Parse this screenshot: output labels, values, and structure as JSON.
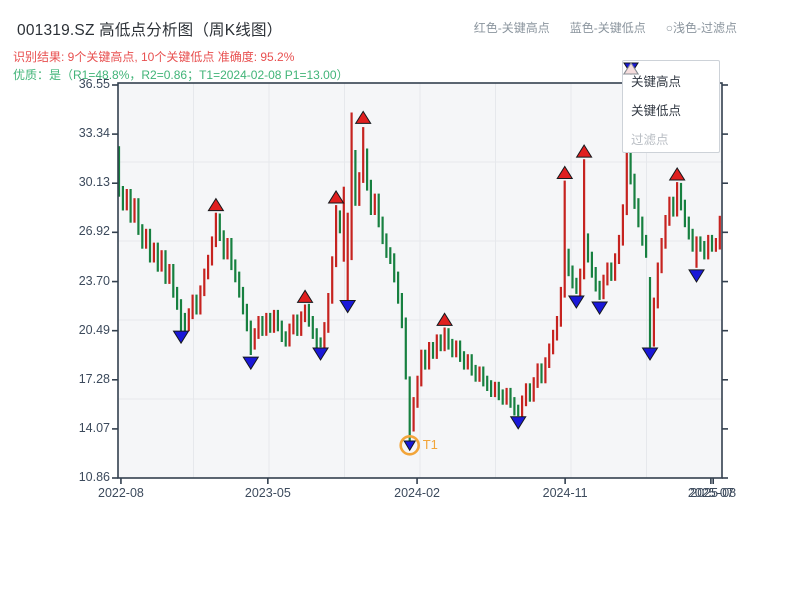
{
  "header": {
    "title": "001319.SZ 高低点分析图（周K线图）",
    "subtitle_result": "识别结果: 9个关键高点, 10个关键低点  准确度: 95.2%",
    "subtitle_quality": "优质：是（R1=48.8%，R2=0.86；T1=2024-02-08 P1=13.00）",
    "legend_hint": [
      {
        "label": "红色-关键高点"
      },
      {
        "label": "蓝色-关键低点"
      },
      {
        "label": "○浅色-过滤点"
      }
    ]
  },
  "legend": {
    "items": [
      {
        "label": "关键高点",
        "symbol": "triangle-up",
        "fill": "#e01f1f",
        "muted": false
      },
      {
        "label": "关键低点",
        "symbol": "triangle-down",
        "fill": "#1a18d8",
        "muted": false
      },
      {
        "label": "过滤点",
        "symbol": "triangle-up",
        "fill": "#f6dddd",
        "muted": true
      }
    ]
  },
  "colors": {
    "up_candle": "#c62320",
    "down_candle": "#178040",
    "key_high_marker": "#e01f1f",
    "key_low_marker": "#1a18d8",
    "marker_edge": "#15181c",
    "t1_ring": "#f2a53a",
    "plot_bg": "#f5f6f8",
    "grid": "#e6e8ec",
    "spine": "#33404f",
    "tick_text": "#3c4a5c"
  },
  "chart_data": {
    "type": "candlestick",
    "symbol": "001319.SZ",
    "frequency": "weekly",
    "title": "001319.SZ 高低点分析图（周K线图）",
    "y_axis": {
      "min": 10.86,
      "max": 36.55,
      "ticks": [
        36.55,
        33.34,
        30.13,
        26.92,
        23.7,
        20.49,
        17.28,
        14.07,
        10.86
      ]
    },
    "x_axis": {
      "ticks": [
        {
          "label": "2022-08",
          "week": 0.5
        },
        {
          "label": "2023-05",
          "week": 38.4
        },
        {
          "label": "2024-02",
          "week": 76.9
        },
        {
          "label": "2024-11",
          "week": 115.1
        },
        {
          "label": "2025-07",
          "week": 152.7
        },
        {
          "label": "2025-08",
          "week": 153.3
        }
      ]
    },
    "first_open": 32.2,
    "closes": [
      29.6,
      28.7,
      29.4,
      27.9,
      28.8,
      27.1,
      26.2,
      26.8,
      25.3,
      25.9,
      24.7,
      25.4,
      23.9,
      24.5,
      23.0,
      22.2,
      21.3,
      20.8,
      21.6,
      22.5,
      21.9,
      23.1,
      24.2,
      25.1,
      26.3,
      27.8,
      26.7,
      25.5,
      26.2,
      24.8,
      24.0,
      23.0,
      21.9,
      20.8,
      19.6,
      20.3,
      21.1,
      20.5,
      21.3,
      20.7,
      21.5,
      20.8,
      20.1,
      19.8,
      20.6,
      21.2,
      20.5,
      21.4,
      21.9,
      21.1,
      20.3,
      19.7,
      19.4,
      20.7,
      22.6,
      25.0,
      28.0,
      27.2,
      27.5,
      28.0,
      34.0,
      29.0,
      30.5,
      33.0,
      30.0,
      28.4,
      29.1,
      27.6,
      26.5,
      25.6,
      25.2,
      24.0,
      22.6,
      21.0,
      18.0,
      14.2,
      15.8,
      17.2,
      18.9,
      18.3,
      19.4,
      19.0,
      19.9,
      19.5,
      20.3,
      19.6,
      19.1,
      19.5,
      18.8,
      18.3,
      18.6,
      17.9,
      17.5,
      17.8,
      17.2,
      16.9,
      16.5,
      16.8,
      16.3,
      16.0,
      16.4,
      15.8,
      15.3,
      15.1,
      15.9,
      16.7,
      16.2,
      17.1,
      18.0,
      17.4,
      18.4,
      19.3,
      20.2,
      21.1,
      23.0,
      25.5,
      24.4,
      23.6,
      23.0,
      24.2,
      26.5,
      25.3,
      24.3,
      23.4,
      22.9,
      23.8,
      24.6,
      24.1,
      25.2,
      26.4,
      28.4,
      32.0,
      30.4,
      28.8,
      27.6,
      26.4,
      25.6,
      19.8,
      22.3,
      24.6,
      26.2,
      27.7,
      28.9,
      28.3,
      29.8,
      28.7,
      27.6,
      26.8,
      26.0,
      26.3,
      26.0,
      25.5,
      26.4,
      26.0,
      26.2,
      26.9
    ],
    "wick_overrides": {
      "16": [
        null,
        20.3
      ],
      "25": [
        28.2,
        null
      ],
      "34": [
        null,
        18.9
      ],
      "48": [
        22.2,
        null
      ],
      "52": [
        null,
        19.4
      ],
      "56": [
        28.7,
        null
      ],
      "58": [
        29.9,
        25.0
      ],
      "59": [
        28.2,
        22.4
      ],
      "60": [
        34.75,
        25.1
      ],
      "61": [
        32.3,
        null
      ],
      "63": [
        33.8,
        null
      ],
      "64": [
        32.4,
        null
      ],
      "74": [
        null,
        17.3
      ],
      "75": [
        17.5,
        13.0
      ],
      "76": [
        null,
        13.9
      ],
      "84": [
        20.7,
        null
      ],
      "103": [
        null,
        14.9
      ],
      "115": [
        30.3,
        null
      ],
      "118": [
        null,
        22.9
      ],
      "120": [
        31.7,
        null
      ],
      "124": [
        null,
        22.5
      ],
      "132": [
        33.6,
        null
      ],
      "137": [
        24.0,
        19.4
      ],
      "144": [
        30.2,
        null
      ],
      "149": [
        null,
        24.6
      ],
      "155": [
        28.0,
        25.8
      ]
    },
    "key_highs": [
      {
        "week": 25,
        "price": 28.7
      },
      {
        "week": 48,
        "price": 22.7
      },
      {
        "week": 56,
        "price": 29.2
      },
      {
        "week": 63,
        "price": 34.4
      },
      {
        "week": 84,
        "price": 21.2
      },
      {
        "week": 115,
        "price": 30.8
      },
      {
        "week": 120,
        "price": 32.2
      },
      {
        "week": 132,
        "price": 33.8
      },
      {
        "week": 144,
        "price": 30.7
      }
    ],
    "key_lows": [
      {
        "week": 16,
        "price": 20.1
      },
      {
        "week": 34,
        "price": 18.4
      },
      {
        "week": 52,
        "price": 19.0
      },
      {
        "week": 59,
        "price": 22.1
      },
      {
        "week": 75,
        "price": 13.0,
        "t1": true
      },
      {
        "week": 103,
        "price": 14.5
      },
      {
        "week": 118,
        "price": 22.4
      },
      {
        "week": 124,
        "price": 22.0
      },
      {
        "week": 137,
        "price": 19.0
      },
      {
        "week": 149,
        "price": 24.1
      }
    ],
    "t1": {
      "label": "T1",
      "date": "2024-02-08",
      "price": 13.0
    }
  }
}
